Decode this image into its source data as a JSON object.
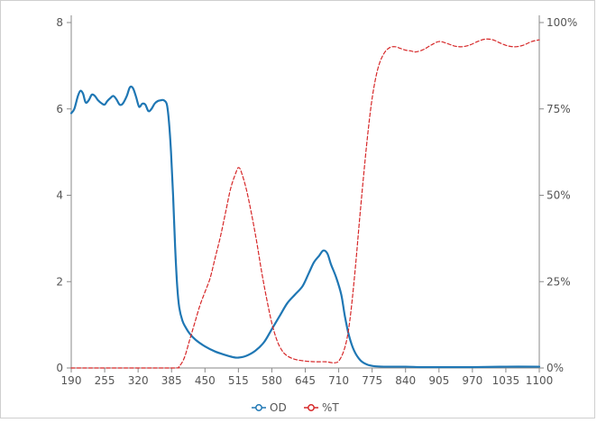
{
  "chart_data": {
    "type": "line",
    "xlim": [
      190,
      1100
    ],
    "x_ticks": [
      "190",
      "255",
      "320",
      "385",
      "450",
      "515",
      "580",
      "645",
      "710",
      "775",
      "840",
      "905",
      "970",
      "1035",
      "1100"
    ],
    "y_left": {
      "lim": [
        0,
        8
      ],
      "ticks": [
        "0",
        "2",
        "4",
        "6",
        "8"
      ]
    },
    "y_right": {
      "lim": [
        0,
        100
      ],
      "ticks": [
        "0%",
        "25%",
        "50%",
        "75%",
        "100%"
      ]
    },
    "grid": false,
    "legend_position": "bottom",
    "series": [
      {
        "name": "OD",
        "axis": "left",
        "color": "#1f77b4",
        "style": "solid",
        "points": [
          [
            190,
            5.9
          ],
          [
            196,
            6.0
          ],
          [
            203,
            6.3
          ],
          [
            208,
            6.42
          ],
          [
            213,
            6.35
          ],
          [
            218,
            6.15
          ],
          [
            224,
            6.2
          ],
          [
            230,
            6.33
          ],
          [
            236,
            6.3
          ],
          [
            242,
            6.2
          ],
          [
            250,
            6.12
          ],
          [
            255,
            6.1
          ],
          [
            260,
            6.18
          ],
          [
            266,
            6.25
          ],
          [
            272,
            6.3
          ],
          [
            278,
            6.22
          ],
          [
            284,
            6.1
          ],
          [
            290,
            6.12
          ],
          [
            298,
            6.3
          ],
          [
            304,
            6.5
          ],
          [
            310,
            6.48
          ],
          [
            316,
            6.28
          ],
          [
            322,
            6.05
          ],
          [
            328,
            6.12
          ],
          [
            334,
            6.1
          ],
          [
            340,
            5.95
          ],
          [
            346,
            6.0
          ],
          [
            352,
            6.12
          ],
          [
            358,
            6.18
          ],
          [
            364,
            6.2
          ],
          [
            370,
            6.2
          ],
          [
            376,
            6.1
          ],
          [
            380,
            5.7
          ],
          [
            384,
            5.0
          ],
          [
            388,
            4.0
          ],
          [
            392,
            2.8
          ],
          [
            396,
            1.9
          ],
          [
            400,
            1.4
          ],
          [
            406,
            1.1
          ],
          [
            412,
            0.95
          ],
          [
            420,
            0.8
          ],
          [
            432,
            0.65
          ],
          [
            450,
            0.5
          ],
          [
            470,
            0.38
          ],
          [
            490,
            0.3
          ],
          [
            505,
            0.25
          ],
          [
            515,
            0.24
          ],
          [
            530,
            0.28
          ],
          [
            548,
            0.4
          ],
          [
            565,
            0.6
          ],
          [
            580,
            0.9
          ],
          [
            595,
            1.2
          ],
          [
            610,
            1.5
          ],
          [
            625,
            1.7
          ],
          [
            640,
            1.9
          ],
          [
            652,
            2.2
          ],
          [
            662,
            2.45
          ],
          [
            672,
            2.6
          ],
          [
            680,
            2.72
          ],
          [
            688,
            2.65
          ],
          [
            695,
            2.4
          ],
          [
            705,
            2.1
          ],
          [
            715,
            1.7
          ],
          [
            722,
            1.2
          ],
          [
            730,
            0.75
          ],
          [
            740,
            0.4
          ],
          [
            752,
            0.18
          ],
          [
            765,
            0.08
          ],
          [
            780,
            0.04
          ],
          [
            800,
            0.03
          ],
          [
            840,
            0.03
          ],
          [
            870,
            0.02
          ],
          [
            905,
            0.02
          ],
          [
            970,
            0.02
          ],
          [
            1035,
            0.03
          ],
          [
            1100,
            0.03
          ]
        ]
      },
      {
        "name": "%T",
        "axis": "right",
        "color": "#d62728",
        "style": "dashed",
        "points": [
          [
            190,
            0
          ],
          [
            300,
            0
          ],
          [
            390,
            0
          ],
          [
            400,
            0.5
          ],
          [
            410,
            3
          ],
          [
            420,
            8
          ],
          [
            430,
            13
          ],
          [
            440,
            18
          ],
          [
            450,
            22
          ],
          [
            460,
            26
          ],
          [
            470,
            32
          ],
          [
            480,
            38
          ],
          [
            490,
            45
          ],
          [
            500,
            52
          ],
          [
            510,
            56.5
          ],
          [
            515,
            58
          ],
          [
            520,
            57
          ],
          [
            530,
            52
          ],
          [
            540,
            45
          ],
          [
            550,
            37
          ],
          [
            560,
            28
          ],
          [
            570,
            20
          ],
          [
            580,
            13
          ],
          [
            590,
            8
          ],
          [
            600,
            5
          ],
          [
            610,
            3.5
          ],
          [
            625,
            2.5
          ],
          [
            645,
            2
          ],
          [
            665,
            1.8
          ],
          [
            685,
            1.8
          ],
          [
            700,
            1.5
          ],
          [
            710,
            2
          ],
          [
            720,
            5
          ],
          [
            728,
            10
          ],
          [
            735,
            18
          ],
          [
            743,
            30
          ],
          [
            750,
            42
          ],
          [
            758,
            55
          ],
          [
            766,
            67
          ],
          [
            774,
            77
          ],
          [
            782,
            84
          ],
          [
            790,
            88.5
          ],
          [
            800,
            91.5
          ],
          [
            810,
            92.8
          ],
          [
            820,
            93
          ],
          [
            830,
            92.5
          ],
          [
            840,
            92
          ],
          [
            850,
            91.8
          ],
          [
            860,
            91.5
          ],
          [
            875,
            92.2
          ],
          [
            890,
            93.5
          ],
          [
            905,
            94.5
          ],
          [
            920,
            94
          ],
          [
            935,
            93.2
          ],
          [
            950,
            93
          ],
          [
            965,
            93.5
          ],
          [
            980,
            94.5
          ],
          [
            995,
            95.2
          ],
          [
            1010,
            95
          ],
          [
            1025,
            94
          ],
          [
            1040,
            93.2
          ],
          [
            1055,
            93
          ],
          [
            1070,
            93.5
          ],
          [
            1085,
            94.5
          ],
          [
            1100,
            95
          ]
        ]
      }
    ]
  }
}
